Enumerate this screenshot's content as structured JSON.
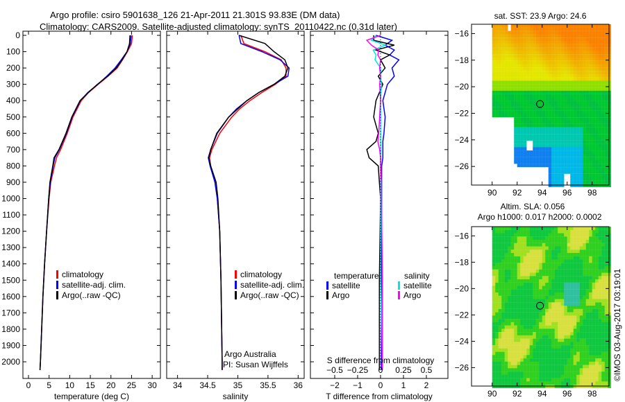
{
  "title_line1": "Argo profile: csiro 5901638_126 21-Apr-2011 21.301S 93.83E (DM data)",
  "title_line2": "Climatology: CARS2009. Satellite-adjusted climatology: synTS_20110422.nc (0.31d later)",
  "credit": "©IMOS 03-Aug-2017 03:19:01",
  "attribution": [
    "Argo Australia",
    "PI: Susan Wijffels"
  ],
  "colors": {
    "climatology": "#ff0000",
    "satellite": "#0000ff",
    "argo": "#000000",
    "sal_satellite": "#00e5e5",
    "sal_argo": "#ff00ff"
  },
  "chart_data": [
    {
      "type": "line",
      "id": "temperature",
      "xlabel": "temperature (deg C)",
      "ylabel": "depth",
      "xticks": [
        0,
        5,
        10,
        15,
        20,
        25,
        30
      ],
      "xlim": [
        -1.35,
        32
      ],
      "yticks": [
        0,
        100,
        200,
        300,
        400,
        500,
        600,
        700,
        800,
        900,
        1000,
        1100,
        1200,
        1300,
        1400,
        1500,
        1600,
        1700,
        1800,
        1900,
        2000
      ],
      "ylim": [
        0,
        2100
      ],
      "legend": [
        "climatology",
        "satellite-adj. clim.",
        "Argo(..raw -QC)"
      ],
      "depth": [
        0,
        50,
        100,
        150,
        200,
        250,
        300,
        350,
        400,
        500,
        600,
        700,
        750,
        800,
        900,
        1000,
        1200,
        1400,
        1600,
        1800,
        2000,
        2050
      ],
      "series": [
        {
          "name": "climatology",
          "values": [
            25.2,
            25.0,
            24.0,
            22.8,
            21.5,
            19.3,
            16.9,
            14.6,
            12.8,
            10.8,
            9.4,
            7.8,
            6.8,
            6.3,
            5.4,
            5.0,
            4.4,
            3.9,
            3.5,
            3.2,
            2.9,
            2.8
          ]
        },
        {
          "name": "satellite-adj. clim.",
          "values": [
            24.9,
            24.7,
            23.9,
            22.5,
            21.0,
            19.0,
            16.8,
            14.4,
            12.6,
            10.6,
            9.2,
            7.5,
            6.4,
            6.0,
            5.3,
            4.9,
            4.4,
            3.9,
            3.5,
            3.2,
            2.9,
            2.8
          ]
        },
        {
          "name": "Argo(..raw -QC)",
          "values": [
            24.6,
            24.5,
            23.9,
            22.7,
            21.3,
            19.2,
            16.7,
            14.5,
            12.5,
            10.5,
            9.1,
            7.4,
            6.2,
            5.9,
            5.2,
            4.9,
            4.4,
            3.9,
            3.5,
            3.2,
            2.9,
            2.8
          ]
        }
      ]
    },
    {
      "type": "line",
      "id": "salinity",
      "xlabel": "salinity",
      "ylabel": "depth",
      "xticks": [
        34,
        34.5,
        35,
        35.5,
        36
      ],
      "xlim": [
        33.82,
        36.1
      ],
      "ylim": [
        0,
        2100
      ],
      "legend": [
        "climatology",
        "satellite-adj. clim.",
        "Argo(..raw -QC)"
      ],
      "depth": [
        0,
        50,
        100,
        150,
        200,
        250,
        300,
        350,
        400,
        450,
        500,
        600,
        700,
        750,
        800,
        900,
        1000,
        1200,
        1500,
        2000,
        2050
      ],
      "series": [
        {
          "name": "climatology",
          "values": [
            35.05,
            35.1,
            35.45,
            35.72,
            35.8,
            35.8,
            35.62,
            35.4,
            35.2,
            35.03,
            34.9,
            34.7,
            34.57,
            34.53,
            34.55,
            34.62,
            34.66,
            34.7,
            34.72,
            34.74,
            34.74
          ]
        },
        {
          "name": "satellite-adj. clim.",
          "values": [
            35.02,
            35.05,
            35.4,
            35.7,
            35.85,
            35.83,
            35.6,
            35.35,
            35.15,
            34.98,
            34.85,
            34.66,
            34.55,
            34.51,
            34.54,
            34.62,
            34.66,
            34.7,
            34.72,
            34.74,
            34.74
          ]
        },
        {
          "name": "Argo(..raw -QC)",
          "values": [
            35.02,
            35.45,
            35.6,
            35.78,
            35.83,
            35.78,
            35.6,
            35.35,
            35.15,
            35.0,
            34.85,
            34.65,
            34.55,
            34.52,
            34.55,
            34.64,
            34.67,
            34.7,
            34.72,
            34.74,
            34.74
          ]
        }
      ]
    },
    {
      "type": "line",
      "id": "difference",
      "xlabel": "T difference from climatology",
      "x2label": "S difference from climatology",
      "xticks": [
        -2,
        -1,
        0,
        1,
        2
      ],
      "x2ticks": [
        -0.5,
        -0.25,
        0,
        0.25,
        0.5
      ],
      "xlim": [
        -3.06,
        2.94
      ],
      "ylim": [
        0,
        2100
      ],
      "legend_titles": [
        "temperature",
        "salinity"
      ],
      "legend": [
        [
          "satellite",
          "Argo"
        ],
        [
          "satellite",
          "Argo"
        ]
      ],
      "depth": [
        0,
        30,
        60,
        90,
        120,
        150,
        200,
        250,
        300,
        400,
        500,
        600,
        650,
        700,
        750,
        800,
        900,
        1000,
        1500,
        2000,
        2050
      ],
      "series": [
        {
          "name": "T satellite",
          "values": [
            -0.2,
            0.5,
            0.2,
            0.6,
            0.4,
            0.8,
            0.5,
            0.6,
            0.3,
            0.1,
            0.2,
            0.15,
            0.1,
            0.1,
            0.1,
            0.05,
            0.05,
            0.05,
            0.03,
            0.03,
            0.03
          ]
        },
        {
          "name": "T Argo",
          "values": [
            -0.3,
            -0.3,
            0.6,
            -0.2,
            0.4,
            0.0,
            0.2,
            -0.1,
            0.1,
            -0.2,
            -0.3,
            -0.1,
            -0.2,
            -0.6,
            -0.5,
            -0.1,
            -0.05,
            0.0,
            -0.05,
            -0.05,
            -0.05
          ]
        },
        {
          "name": "S satellite",
          "values": [
            -0.05,
            -0.1,
            0.05,
            -0.08,
            -0.05,
            -0.06,
            0.0,
            0.0,
            0.01,
            0.0,
            0.0,
            0.0,
            0.0,
            0.0,
            0.0,
            0.0,
            0.0,
            0.0,
            0.0,
            0.02,
            0.02
          ]
        },
        {
          "name": "S Argo",
          "values": [
            0.0,
            -0.15,
            -0.1,
            -0.02,
            -0.03,
            0.0,
            -0.01,
            0.0,
            -0.01,
            0.0,
            -0.01,
            -0.02,
            -0.03,
            -0.01,
            0.0,
            0.0,
            0.01,
            0.01,
            0.02,
            0.02,
            0.02
          ]
        }
      ]
    },
    {
      "type": "heatmap",
      "id": "sst-map",
      "title": "sat. SST: 23.9 Argo: 24.6",
      "xticks": [
        90,
        92,
        94,
        96,
        98
      ],
      "yticks": [
        -16,
        -18,
        -20,
        -22,
        -24,
        -26
      ],
      "xlim": [
        88.35,
        99.35
      ],
      "ylim": [
        -27.4,
        -15.3
      ],
      "argo_position": [
        93.83,
        -21.301
      ]
    },
    {
      "type": "heatmap",
      "id": "sla-map",
      "title_line1": "Altim. SLA: 0.056",
      "title_line2": "Argo h1000: 0.017 h2000: 0.0002",
      "xticks": [
        90,
        92,
        94,
        96,
        98
      ],
      "yticks": [
        -16,
        -18,
        -20,
        -22,
        -24,
        -26
      ],
      "xlim": [
        88.35,
        99.35
      ],
      "ylim": [
        -27.4,
        -15.3
      ],
      "argo_position": [
        93.83,
        -21.301
      ]
    }
  ]
}
